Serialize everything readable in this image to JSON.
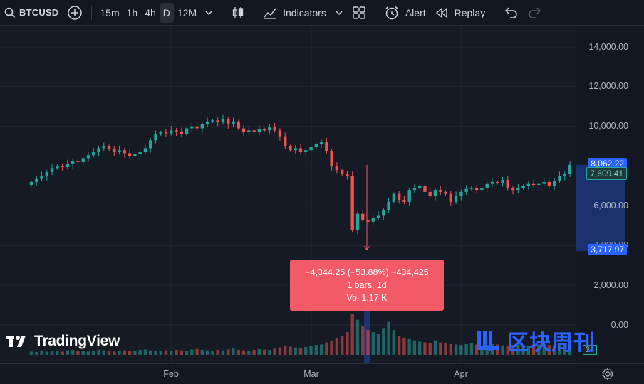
{
  "toolbar": {
    "symbol": "BTCUSD",
    "intervals": [
      "15m",
      "1h",
      "4h",
      "D"
    ],
    "active_interval": "D",
    "range": "12M",
    "indicators_label": "Indicators",
    "alert_label": "Alert",
    "replay_label": "Replay"
  },
  "price_axis": {
    "labels": [
      "14,000.00",
      "12,000.00",
      "10,000.00",
      "6,000.00",
      "4,000.00",
      "2,000.00",
      "0.00"
    ],
    "current_price": "8,062.22",
    "line_price": "7,609.41",
    "measure_low": "3,717.97"
  },
  "volume": {
    "last": "34"
  },
  "measure_tooltip": {
    "change": "−4,344.25 (−53.88%) −434,425",
    "bars": "1 bars, 1d",
    "volume": "Vol 1.17 K"
  },
  "time_axis": {
    "labels": [
      "Feb",
      "Mar",
      "Apr"
    ]
  },
  "branding": {
    "logo": "TradingView",
    "watermark": "区块周刊"
  },
  "colors": {
    "up": "#26a69a",
    "down": "#ef5350",
    "accent": "#2962ff",
    "tooltip": "#f15a66"
  },
  "chart_data": {
    "type": "candlestick",
    "interval": "1d",
    "ylim": [
      0,
      15000
    ],
    "x_ticks": [
      "Feb",
      "Mar",
      "Apr"
    ],
    "y_ticks": [
      0,
      2000,
      4000,
      6000,
      8000,
      10000,
      12000,
      14000
    ],
    "close_path": [
      7200,
      7350,
      7500,
      7700,
      7900,
      8000,
      7950,
      8100,
      8250,
      8200,
      8400,
      8550,
      8700,
      8900,
      9000,
      8850,
      8700,
      8800,
      8650,
      8500,
      8600,
      8700,
      8900,
      9300,
      9600,
      9700,
      9650,
      9800,
      9750,
      9600,
      9900,
      10000,
      9900,
      10100,
      10250,
      10300,
      10200,
      10350,
      10100,
      10250,
      9900,
      9700,
      9800,
      9700,
      9850,
      9800,
      9950,
      9800,
      9500,
      9000,
      8800,
      8900,
      8700,
      8800,
      8950,
      9100,
      9200,
      8750,
      8000,
      7800,
      7600,
      7500,
      4800,
      5600,
      5300,
      5200,
      5400,
      5500,
      5800,
      6200,
      6600,
      6300,
      6200,
      6800,
      6900,
      7000,
      6700,
      6500,
      6800,
      6700,
      6600,
      6200,
      6500,
      6700,
      6850,
      6900,
      6800,
      6900,
      7100,
      7200,
      7150,
      7300,
      6900,
      6800,
      6900,
      7000,
      7100,
      7050,
      7100,
      7200,
      7000,
      7250,
      7500,
      7600,
      8062
    ],
    "volume_bars": [
      8,
      7,
      9,
      8,
      10,
      9,
      8,
      11,
      12,
      10,
      9,
      8,
      10,
      12,
      11,
      9,
      8,
      10,
      11,
      9,
      10,
      12,
      13,
      11,
      10,
      9,
      11,
      10,
      12,
      11,
      10,
      13,
      14,
      12,
      11,
      10,
      12,
      11,
      13,
      15,
      12,
      11,
      10,
      12,
      14,
      13,
      12,
      15,
      18,
      22,
      20,
      18,
      17,
      19,
      21,
      24,
      25,
      30,
      35,
      40,
      45,
      55,
      100,
      85,
      70,
      60,
      55,
      50,
      65,
      80,
      60,
      45,
      40,
      38,
      35,
      32,
      30,
      28,
      35,
      30,
      28,
      26,
      25,
      24,
      26,
      28,
      25,
      22,
      24,
      26,
      25,
      23,
      22,
      24,
      25,
      23,
      22,
      24,
      25,
      26,
      24,
      22,
      25,
      26,
      34
    ],
    "measure_drop": {
      "from": 8062.22,
      "to": 3717.97,
      "change_pct": -53.88
    }
  }
}
